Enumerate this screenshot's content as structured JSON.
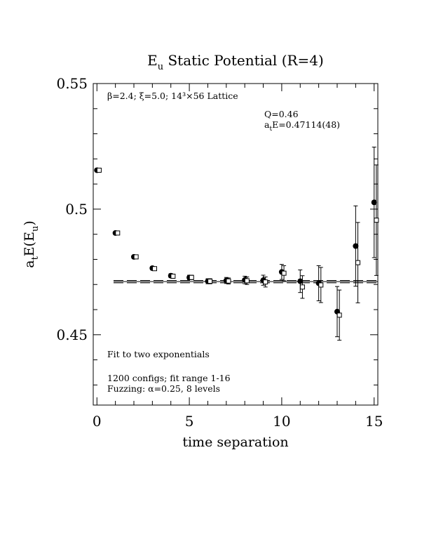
{
  "chart_data": {
    "type": "scatter",
    "title": "E",
    "title_sub": "u",
    "title_rest": " Static Potential (R=4)",
    "xlabel": "time separation",
    "ylabel": {
      "p1": "a",
      "s1": "t",
      "p2": "E(E",
      "s2": "u",
      "p3": ")"
    },
    "xlim": [
      -0.2,
      15.2
    ],
    "ylim": [
      0.422,
      0.55
    ],
    "xticks": [
      0,
      5,
      10,
      15
    ],
    "xtick_labels": [
      "0",
      "5",
      "10",
      "15"
    ],
    "yticks": [
      0.45,
      0.5,
      0.55
    ],
    "ytick_labels": [
      "0.45",
      "0.5",
      "0.55"
    ],
    "annotations": {
      "lattice": "β=2.4; ξ=5.0; 14³×56 Lattice",
      "q": "Q=0.46",
      "fit_energy": {
        "p1": "a",
        "s1": "t",
        "p2": "E=0.47114(48)"
      },
      "fit_method": "Fit to two exponentials",
      "configs": "1200 configs; fit range 1-16",
      "fuzzing": "Fuzzing: α=0.25, 8 levels"
    },
    "fit": {
      "value": 0.47114,
      "error": 0.00048
    },
    "series": [
      {
        "marker": "filled-circle",
        "x": [
          0,
          1,
          2,
          3,
          4,
          5,
          6,
          7,
          8,
          9,
          10,
          11,
          12,
          13,
          14,
          15
        ],
        "y": [
          0.5155,
          0.4905,
          0.481,
          0.4765,
          0.4735,
          0.4728,
          0.4713,
          0.4716,
          0.4718,
          0.4717,
          0.475,
          0.4713,
          0.4705,
          0.4592,
          0.4853,
          0.5027
        ],
        "err": [
          0.0004,
          0.0005,
          0.0006,
          0.0007,
          0.0008,
          0.0009,
          0.001,
          0.0012,
          0.0015,
          0.002,
          0.003,
          0.0045,
          0.007,
          0.01,
          0.016,
          0.022
        ]
      },
      {
        "marker": "open-square",
        "x": [
          0,
          1,
          2,
          3,
          4,
          5,
          6,
          7,
          8,
          9,
          10,
          11,
          12,
          13,
          14,
          15
        ],
        "y": [
          0.5155,
          0.4905,
          0.481,
          0.4763,
          0.4733,
          0.4728,
          0.4713,
          0.4714,
          0.4715,
          0.471,
          0.4745,
          0.469,
          0.4698,
          0.4578,
          0.4787,
          0.4956
        ],
        "err": [
          0.0004,
          0.0005,
          0.0006,
          0.0007,
          0.0008,
          0.0009,
          0.001,
          0.0012,
          0.0015,
          0.002,
          0.003,
          0.0045,
          0.007,
          0.01,
          0.016,
          0.022
        ]
      }
    ]
  }
}
